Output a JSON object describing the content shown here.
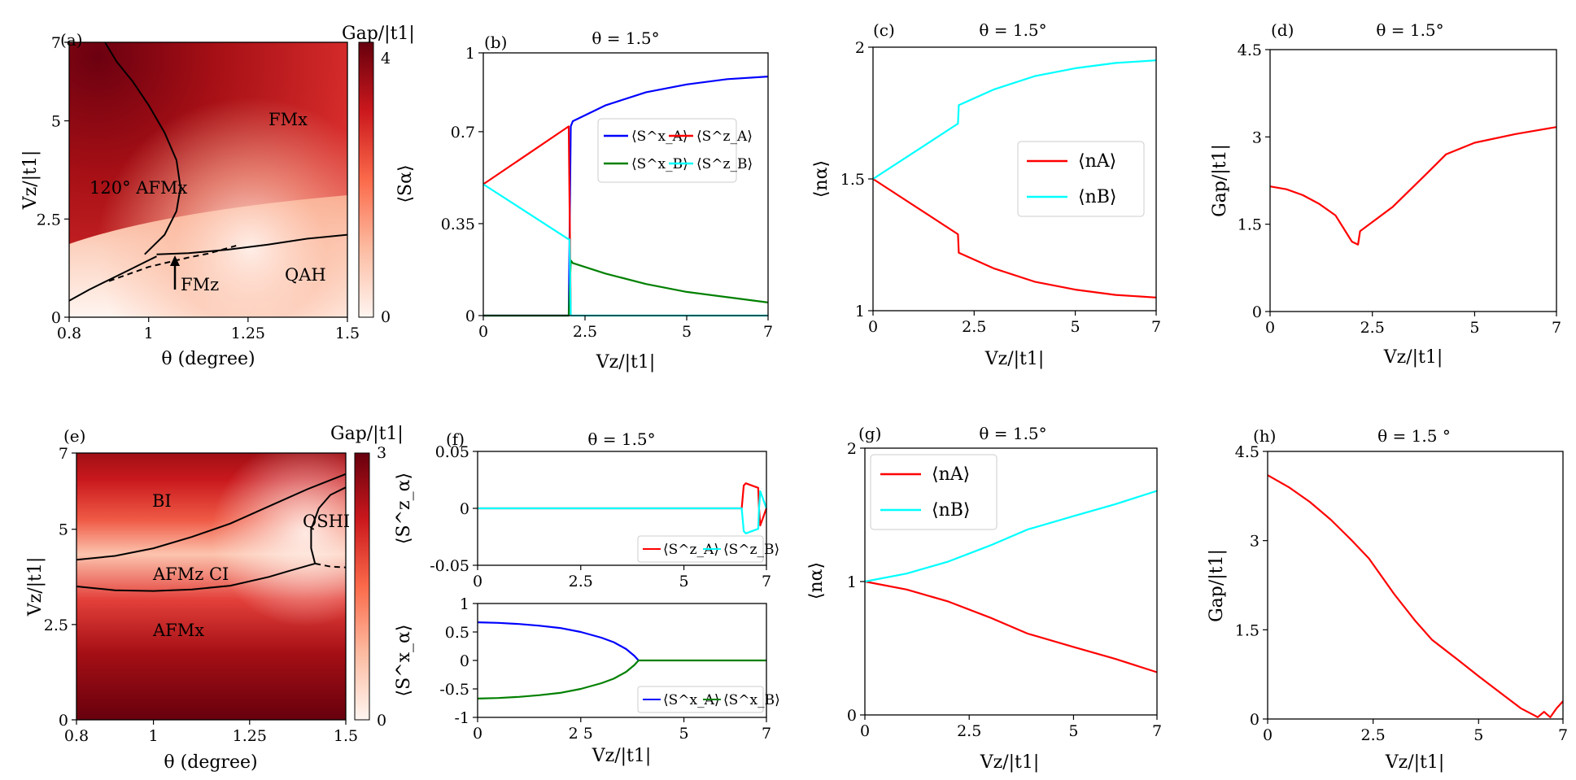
{
  "chart_data": [
    {
      "id": "a",
      "type": "heatmap",
      "panel_label": "(a)",
      "xlabel": "θ (degree)",
      "ylabel": "Vz/|t1|",
      "xlim": [
        0.8,
        1.5
      ],
      "ylim": [
        0,
        7
      ],
      "xticks": [
        0.8,
        1,
        1.25,
        1.5
      ],
      "xticklabels": [
        "0.8",
        "1",
        "1.25",
        "1.5"
      ],
      "yticks": [
        0,
        2.5,
        5,
        7
      ],
      "yticklabels": [
        "0",
        "2.5",
        "5",
        "7"
      ],
      "colorbar": {
        "label": "Gap/|t1|",
        "min": 0,
        "max": 4,
        "ticklabels": [
          "0",
          "4"
        ]
      },
      "regions": [
        "FMx",
        "120° AFMx",
        "QAH",
        "FMz"
      ],
      "boundaries": [
        {
          "style": "solid",
          "x": [
            0.89,
            0.92,
            0.96,
            1.0,
            1.04,
            1.07,
            1.08,
            1.07,
            1.04,
            1.01,
            0.99
          ],
          "y": [
            7,
            6.5,
            6.0,
            5.4,
            4.7,
            4.0,
            3.3,
            2.7,
            2.1,
            1.8,
            1.6
          ]
        },
        {
          "style": "solid",
          "x": [
            0.8,
            0.85,
            0.9,
            0.95,
            1.0,
            1.02
          ],
          "y": [
            0.42,
            0.7,
            0.95,
            1.2,
            1.45,
            1.55
          ]
        },
        {
          "style": "solid",
          "x": [
            1.02,
            1.1,
            1.2,
            1.3,
            1.4,
            1.5
          ],
          "y": [
            1.6,
            1.63,
            1.72,
            1.85,
            2.0,
            2.1
          ]
        },
        {
          "style": "dashed",
          "x": [
            0.9,
            0.95,
            1.0,
            1.05,
            1.1,
            1.15,
            1.22
          ],
          "y": [
            0.92,
            1.1,
            1.28,
            1.4,
            1.52,
            1.62,
            1.82
          ]
        }
      ]
    },
    {
      "id": "b",
      "type": "line",
      "panel_label": "(b)",
      "title": "θ = 1.5°",
      "xlabel": "Vz/|t1|",
      "ylabel": "⟨Sα⟩",
      "xlim": [
        0,
        7
      ],
      "ylim": [
        0,
        1
      ],
      "xticks": [
        0,
        2.5,
        5,
        7
      ],
      "xticklabels": [
        "0",
        "2.5",
        "5",
        "7"
      ],
      "yticks": [
        0,
        0.35,
        0.7,
        1
      ],
      "yticklabels": [
        "0",
        "0.35",
        "0.7",
        "1"
      ],
      "legend": "top-right",
      "series": [
        {
          "name": "⟨S^x_A⟩",
          "color": "#0000ff",
          "x": [
            0,
            2.1,
            2.15,
            2.2,
            3,
            4,
            5,
            6,
            7
          ],
          "y": [
            0,
            0,
            0.72,
            0.74,
            0.8,
            0.85,
            0.88,
            0.9,
            0.91
          ]
        },
        {
          "name": "⟨S^z_A⟩",
          "color": "#ff0000",
          "x": [
            0,
            2.1,
            2.15
          ],
          "y": [
            0.5,
            0.72,
            0
          ]
        },
        {
          "name": "⟨S^x_B⟩",
          "color": "#008000",
          "x": [
            0,
            2.1,
            2.15,
            2.2,
            3,
            4,
            5,
            6,
            7
          ],
          "y": [
            0,
            0,
            0.21,
            0.2,
            0.16,
            0.12,
            0.09,
            0.07,
            0.05
          ]
        },
        {
          "name": "⟨S^z_B⟩",
          "color": "#00ffff",
          "x": [
            0,
            2.1,
            2.12,
            2.15,
            7
          ],
          "y": [
            0.5,
            0.29,
            0.29,
            0,
            0
          ]
        }
      ]
    },
    {
      "id": "c",
      "type": "line",
      "panel_label": "(c)",
      "title": "θ = 1.5°",
      "xlabel": "Vz/|t1|",
      "ylabel": "⟨nα⟩",
      "xlim": [
        0,
        7
      ],
      "ylim": [
        1,
        2
      ],
      "xticks": [
        0,
        2.5,
        5,
        7
      ],
      "xticklabels": [
        "0",
        "2.5",
        "5",
        "7"
      ],
      "yticks": [
        1,
        1.5,
        2
      ],
      "yticklabels": [
        "1",
        "1.5",
        "2"
      ],
      "legend": "right",
      "series": [
        {
          "name": "⟨nA⟩",
          "color": "#ff0000",
          "x": [
            0,
            2.1,
            2.12,
            3,
            4,
            5,
            6,
            7
          ],
          "y": [
            1.5,
            1.29,
            1.22,
            1.16,
            1.11,
            1.08,
            1.06,
            1.05
          ]
        },
        {
          "name": "⟨nB⟩",
          "color": "#00ffff",
          "x": [
            0,
            2.1,
            2.12,
            3,
            4,
            5,
            6,
            7
          ],
          "y": [
            1.5,
            1.71,
            1.78,
            1.84,
            1.89,
            1.92,
            1.94,
            1.95
          ]
        }
      ]
    },
    {
      "id": "d",
      "type": "line",
      "panel_label": "(d)",
      "title": "θ = 1.5°",
      "xlabel": "Vz/|t1|",
      "ylabel": "Gap/|t1|",
      "xlim": [
        0,
        7
      ],
      "ylim": [
        0,
        4.5
      ],
      "xticks": [
        0,
        2.5,
        5,
        7
      ],
      "xticklabels": [
        "0",
        "2.5",
        "5",
        "7"
      ],
      "yticks": [
        0,
        1.5,
        3,
        4.5
      ],
      "yticklabels": [
        "0",
        "1.5",
        "3",
        "4.5"
      ],
      "series": [
        {
          "name": "",
          "color": "#ff0000",
          "x": [
            0,
            0.4,
            0.8,
            1.2,
            1.6,
            2.0,
            2.15,
            2.2,
            3.0,
            3.8,
            4.3,
            5.0,
            6.0,
            7.0
          ],
          "y": [
            2.15,
            2.1,
            2.0,
            1.85,
            1.65,
            1.2,
            1.15,
            1.38,
            1.8,
            2.35,
            2.7,
            2.9,
            3.05,
            3.17
          ]
        }
      ]
    },
    {
      "id": "e",
      "type": "heatmap",
      "panel_label": "(e)",
      "xlabel": "θ (degree)",
      "ylabel": "Vz/|t1|",
      "xlim": [
        0.8,
        1.5
      ],
      "ylim": [
        0,
        7
      ],
      "xticks": [
        0.8,
        1,
        1.25,
        1.5
      ],
      "xticklabels": [
        "0.8",
        "1",
        "1.25",
        "1.5"
      ],
      "yticks": [
        0,
        2.5,
        5,
        7
      ],
      "yticklabels": [
        "0",
        "2.5",
        "5",
        "7"
      ],
      "colorbar": {
        "label": "Gap/|t1|",
        "min": 0,
        "max": 3,
        "ticklabels": [
          "0",
          "3"
        ]
      },
      "regions": [
        "BI",
        "QSHI",
        "AFMz CI",
        "AFMx"
      ],
      "boundaries": [
        {
          "style": "solid",
          "x": [
            0.8,
            0.9,
            1.0,
            1.1,
            1.2,
            1.3,
            1.4,
            1.5
          ],
          "y": [
            4.2,
            4.3,
            4.5,
            4.8,
            5.15,
            5.6,
            6.05,
            6.45
          ]
        },
        {
          "style": "solid",
          "x": [
            0.8,
            0.9,
            1.0,
            1.1,
            1.2,
            1.3,
            1.35,
            1.42
          ],
          "y": [
            3.5,
            3.4,
            3.38,
            3.42,
            3.52,
            3.75,
            3.9,
            4.1
          ]
        },
        {
          "style": "solid",
          "x": [
            1.5,
            1.46,
            1.43,
            1.41,
            1.41,
            1.42
          ],
          "y": [
            6.1,
            5.9,
            5.55,
            5.0,
            4.5,
            4.1
          ]
        },
        {
          "style": "dashed",
          "x": [
            1.42,
            1.46,
            1.5
          ],
          "y": [
            4.1,
            4.02,
            4.0
          ]
        }
      ]
    },
    {
      "id": "f_top",
      "type": "line",
      "panel_label": "(f)",
      "title": "θ = 1.5°",
      "ylabel": "⟨S^z_α⟩",
      "xlim": [
        0,
        7
      ],
      "ylim": [
        -0.05,
        0.05
      ],
      "xticks": [
        0,
        2.5,
        5,
        7
      ],
      "xticklabels": [
        "0",
        "2.5",
        "5",
        "7"
      ],
      "yticks": [
        -0.05,
        0,
        0.05
      ],
      "yticklabels": [
        "-0.05",
        "0",
        "0.05"
      ],
      "legend": "bottom-right",
      "series": [
        {
          "name": "⟨S^z_A⟩",
          "color": "#ff0000",
          "x": [
            0,
            6.4,
            6.45,
            6.5,
            6.8,
            6.82,
            6.85,
            7
          ],
          "y": [
            0,
            0,
            0.02,
            0.022,
            0.018,
            0.0,
            -0.015,
            0
          ]
        },
        {
          "name": "⟨S^z_B⟩",
          "color": "#00ffff",
          "x": [
            0,
            6.4,
            6.45,
            6.5,
            6.8,
            6.82,
            6.85,
            7
          ],
          "y": [
            0,
            0,
            -0.02,
            -0.022,
            -0.018,
            0.0,
            0.015,
            0
          ]
        }
      ]
    },
    {
      "id": "f_bottom",
      "type": "line",
      "xlabel": "Vz/|t1|",
      "ylabel": "⟨S^x_α⟩",
      "xlim": [
        0,
        7
      ],
      "ylim": [
        -1,
        1
      ],
      "xticks": [
        0,
        2.5,
        5,
        7
      ],
      "xticklabels": [
        "0",
        "2 5",
        "5",
        "7"
      ],
      "yticks": [
        -1,
        -0.5,
        0,
        0.5,
        1
      ],
      "yticklabels": [
        "-1",
        "-0.5",
        "0",
        "0.5",
        "1"
      ],
      "legend": "bottom-right",
      "series": [
        {
          "name": "⟨S^x_A⟩",
          "color": "#0000ff",
          "x": [
            0,
            0.5,
            1,
            1.5,
            2,
            2.5,
            3,
            3.3,
            3.6,
            3.8,
            3.9
          ],
          "y": [
            0.67,
            0.66,
            0.64,
            0.61,
            0.57,
            0.5,
            0.4,
            0.32,
            0.2,
            0.08,
            0
          ]
        },
        {
          "name": "⟨S^x_B⟩",
          "color": "#008000",
          "x": [
            0,
            0.5,
            1,
            1.5,
            2,
            2.5,
            3,
            3.3,
            3.6,
            3.8,
            3.9,
            7
          ],
          "y": [
            -0.67,
            -0.66,
            -0.64,
            -0.61,
            -0.57,
            -0.5,
            -0.4,
            -0.32,
            -0.2,
            -0.08,
            0,
            0
          ]
        }
      ]
    },
    {
      "id": "g",
      "type": "line",
      "panel_label": "(g)",
      "title": "θ = 1.5°",
      "xlabel": "Vz/|t1|",
      "ylabel": "⟨nα⟩",
      "xlim": [
        0,
        7
      ],
      "ylim": [
        0,
        2
      ],
      "xticks": [
        0,
        2.5,
        5,
        7
      ],
      "xticklabels": [
        "0",
        "2.5",
        "5",
        "7"
      ],
      "yticks": [
        0,
        1,
        2
      ],
      "yticklabels": [
        "0",
        "1",
        "2"
      ],
      "legend": "top-left",
      "series": [
        {
          "name": "⟨nA⟩",
          "color": "#ff0000",
          "x": [
            0,
            1,
            2,
            3,
            3.9,
            5,
            6,
            7
          ],
          "y": [
            1.0,
            0.94,
            0.85,
            0.73,
            0.61,
            0.51,
            0.42,
            0.32
          ]
        },
        {
          "name": "⟨nB⟩",
          "color": "#00ffff",
          "x": [
            0,
            1,
            2,
            3,
            3.9,
            5,
            6,
            7
          ],
          "y": [
            1.0,
            1.06,
            1.15,
            1.27,
            1.39,
            1.49,
            1.58,
            1.68
          ]
        }
      ]
    },
    {
      "id": "h",
      "type": "line",
      "panel_label": "(h)",
      "title": "θ = 1.5 °",
      "xlabel": "Vz/|t1|",
      "ylabel": "Gap/|t1|",
      "xlim": [
        0,
        7
      ],
      "ylim": [
        0,
        4.5
      ],
      "xticks": [
        0,
        2.5,
        5,
        7
      ],
      "xticklabels": [
        "0",
        "2.5",
        "5",
        "7"
      ],
      "yticks": [
        0,
        1.5,
        3,
        4.5
      ],
      "yticklabels": [
        "0",
        "1.5",
        "3",
        "4.5"
      ],
      "series": [
        {
          "name": "",
          "color": "#ff0000",
          "x": [
            0,
            0.5,
            1.0,
            1.5,
            2.0,
            2.4,
            3.0,
            3.5,
            3.9,
            4.5,
            5.0,
            5.5,
            6.0,
            6.35,
            6.4,
            6.55,
            6.7,
            6.85,
            7.0
          ],
          "y": [
            4.1,
            3.9,
            3.65,
            3.35,
            3.0,
            2.7,
            2.1,
            1.65,
            1.33,
            1.0,
            0.72,
            0.45,
            0.18,
            0.05,
            0.03,
            0.12,
            0.03,
            0.18,
            0.3
          ]
        }
      ]
    }
  ]
}
